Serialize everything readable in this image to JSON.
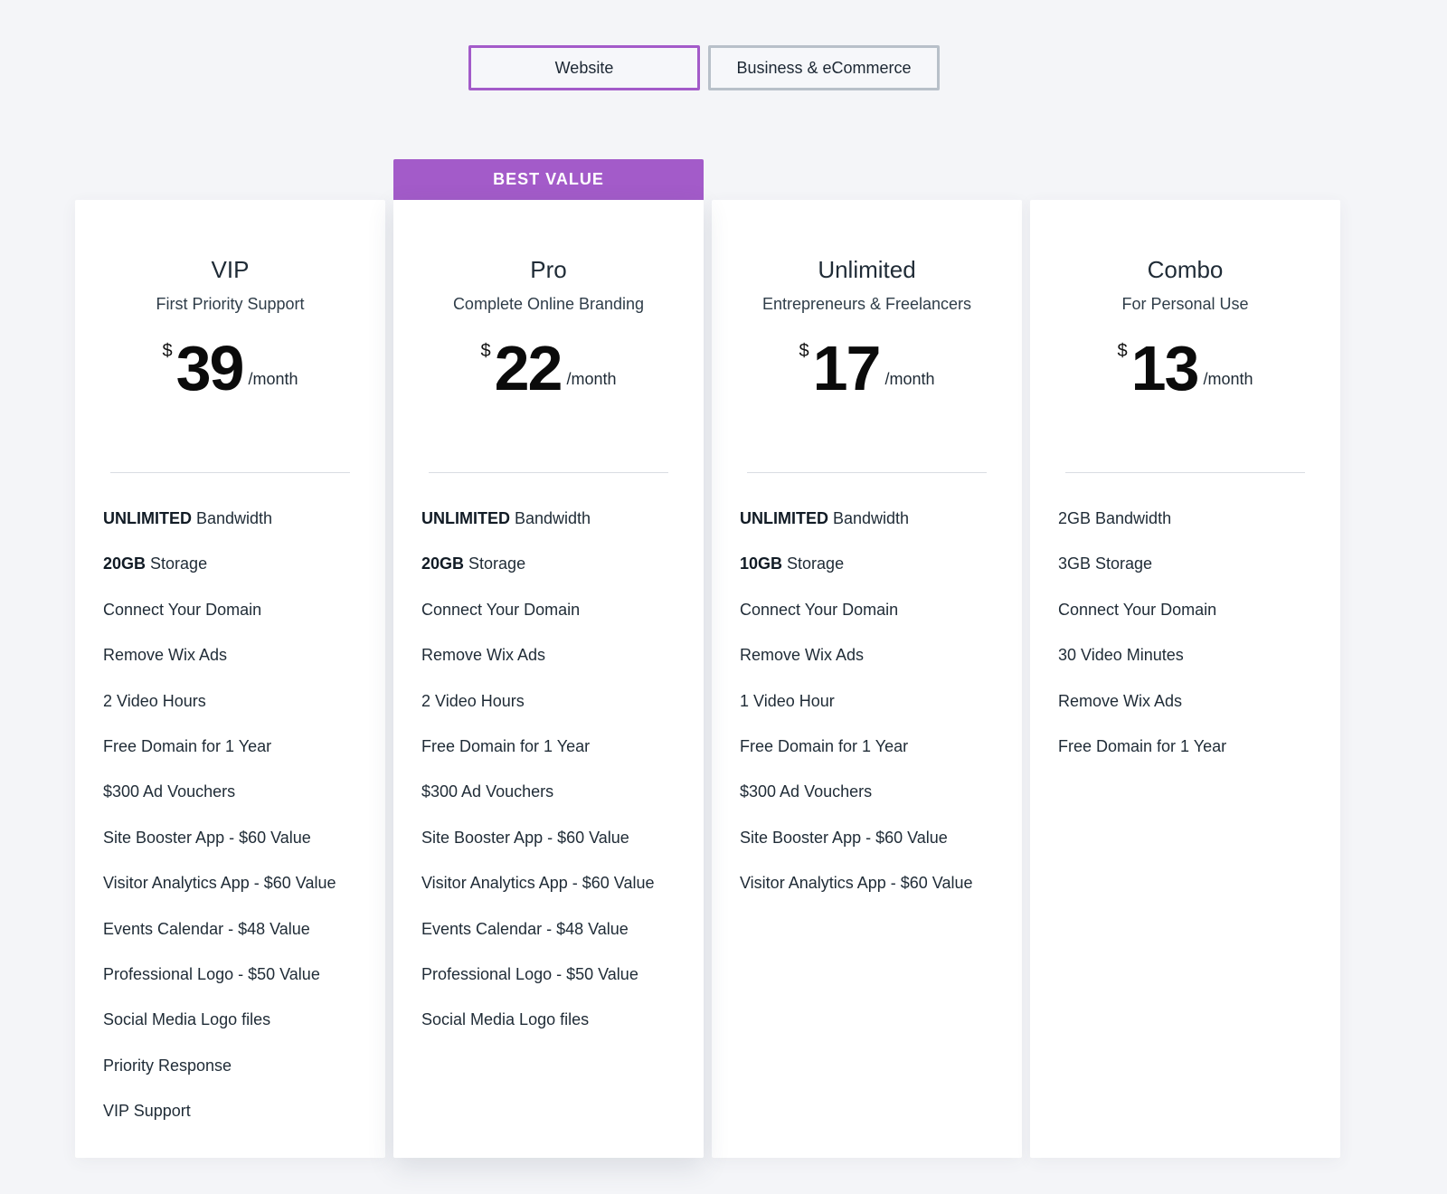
{
  "tabs": [
    {
      "label": "Website",
      "active": true
    },
    {
      "label": "Business & eCommerce",
      "active": false
    }
  ],
  "plans": [
    {
      "name": "VIP",
      "subtitle": "First Priority Support",
      "currency": "$",
      "price": "39",
      "period": "/month",
      "badge": "",
      "features": [
        {
          "bold": "UNLIMITED",
          "text": " Bandwidth"
        },
        {
          "bold": "20GB",
          "text": " Storage"
        },
        {
          "bold": "",
          "text": "Connect Your Domain"
        },
        {
          "bold": "",
          "text": "Remove Wix Ads"
        },
        {
          "bold": "",
          "text": "2 Video Hours"
        },
        {
          "bold": "",
          "text": "Free Domain for 1 Year"
        },
        {
          "bold": "",
          "text": "$300 Ad Vouchers"
        },
        {
          "bold": "",
          "text": "Site Booster App - $60 Value"
        },
        {
          "bold": "",
          "text": "Visitor Analytics App - $60 Value"
        },
        {
          "bold": "",
          "text": "Events Calendar - $48 Value"
        },
        {
          "bold": "",
          "text": "Professional Logo - $50 Value"
        },
        {
          "bold": "",
          "text": "Social Media Logo files"
        },
        {
          "bold": "",
          "text": "Priority Response"
        },
        {
          "bold": "",
          "text": "VIP Support"
        }
      ]
    },
    {
      "name": "Pro",
      "subtitle": "Complete Online Branding",
      "currency": "$",
      "price": "22",
      "period": "/month",
      "badge": "BEST VALUE",
      "features": [
        {
          "bold": "UNLIMITED",
          "text": " Bandwidth"
        },
        {
          "bold": "20GB",
          "text": " Storage"
        },
        {
          "bold": "",
          "text": "Connect Your Domain"
        },
        {
          "bold": "",
          "text": "Remove Wix Ads"
        },
        {
          "bold": "",
          "text": "2 Video Hours"
        },
        {
          "bold": "",
          "text": "Free Domain for 1 Year"
        },
        {
          "bold": "",
          "text": "$300 Ad Vouchers"
        },
        {
          "bold": "",
          "text": "Site Booster App - $60 Value"
        },
        {
          "bold": "",
          "text": "Visitor Analytics App - $60 Value"
        },
        {
          "bold": "",
          "text": "Events Calendar - $48 Value"
        },
        {
          "bold": "",
          "text": "Professional Logo - $50 Value"
        },
        {
          "bold": "",
          "text": "Social Media Logo files"
        }
      ]
    },
    {
      "name": "Unlimited",
      "subtitle": "Entrepreneurs & Freelancers",
      "currency": "$",
      "price": "17",
      "period": "/month",
      "badge": "",
      "features": [
        {
          "bold": "UNLIMITED",
          "text": " Bandwidth"
        },
        {
          "bold": "10GB",
          "text": " Storage"
        },
        {
          "bold": "",
          "text": "Connect Your Domain"
        },
        {
          "bold": "",
          "text": "Remove Wix Ads"
        },
        {
          "bold": "",
          "text": "1 Video Hour"
        },
        {
          "bold": "",
          "text": "Free Domain for 1 Year"
        },
        {
          "bold": "",
          "text": "$300 Ad Vouchers"
        },
        {
          "bold": "",
          "text": "Site Booster App - $60 Value"
        },
        {
          "bold": "",
          "text": "Visitor Analytics App - $60 Value"
        }
      ]
    },
    {
      "name": "Combo",
      "subtitle": "For Personal Use",
      "currency": "$",
      "price": "13",
      "period": "/month",
      "badge": "",
      "features": [
        {
          "bold": "",
          "text": "2GB Bandwidth"
        },
        {
          "bold": "",
          "text": "3GB Storage"
        },
        {
          "bold": "",
          "text": "Connect Your Domain"
        },
        {
          "bold": "",
          "text": "30 Video Minutes"
        },
        {
          "bold": "",
          "text": "Remove Wix Ads"
        },
        {
          "bold": "",
          "text": "Free Domain for 1 Year"
        }
      ]
    }
  ],
  "colors": {
    "accent": "#a35bc9",
    "background": "#f4f5f8",
    "card": "#ffffff",
    "tab_border": "#b8c0c9"
  }
}
